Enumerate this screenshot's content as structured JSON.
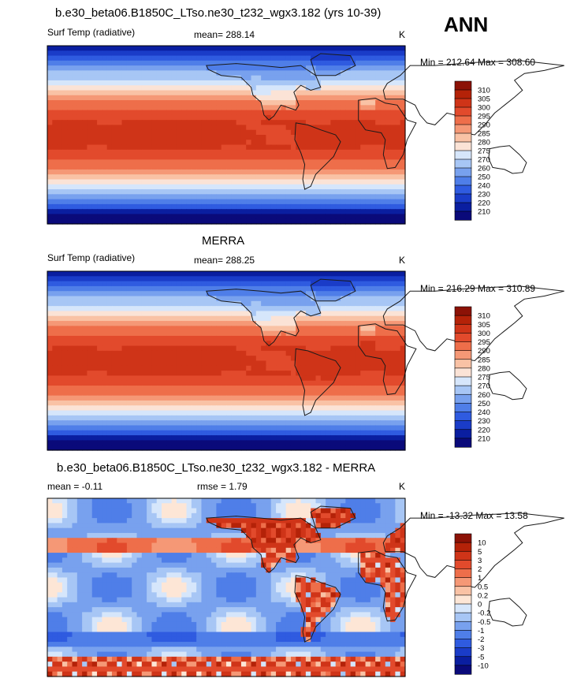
{
  "season_label": "ANN",
  "colors": {
    "abs_scale": [
      "#0a0a7a",
      "#0a1ea0",
      "#1a3cc8",
      "#2f5be0",
      "#4f7ee8",
      "#78a1ee",
      "#a7c6f5",
      "#d6e6fb",
      "#fbe3d6",
      "#f9c2a5",
      "#f59876",
      "#ee6e4a",
      "#e24a2c",
      "#cf3418",
      "#b42208",
      "#8c1206"
    ],
    "diff_scale": [
      "#0a0a7a",
      "#0a1ea0",
      "#1a3cc8",
      "#2f5be0",
      "#4f7ee8",
      "#78a1ee",
      "#a7c6f5",
      "#d6e6fb",
      "#fde6d6",
      "#f9c2a5",
      "#f59876",
      "#ee6e4a",
      "#e24a2c",
      "#cf3418",
      "#b42208",
      "#8c1206"
    ],
    "land": "#1a1a1a"
  },
  "chart_data": [
    {
      "type": "heatmap",
      "title": "b.e30_beta06.B1850C_LTso.ne30_t232_wgx3.182 (yrs 10-39)",
      "variable": "Surf Temp (radiative)",
      "mean_label": "mean= 288.14",
      "units": "K",
      "minmax": "Min = 212.64 Max = 308.60",
      "colorbar_levels": [
        "310",
        "305",
        "300",
        "295",
        "290",
        "285",
        "280",
        "275",
        "270",
        "260",
        "250",
        "240",
        "230",
        "220",
        "210"
      ],
      "field": "model"
    },
    {
      "type": "heatmap",
      "title": "MERRA",
      "variable": "Surf Temp (radiative)",
      "mean_label": "mean= 288.25",
      "units": "K",
      "minmax": "Min = 216.29 Max = 310.89",
      "colorbar_levels": [
        "310",
        "305",
        "300",
        "295",
        "290",
        "285",
        "280",
        "275",
        "270",
        "260",
        "250",
        "240",
        "230",
        "220",
        "210"
      ],
      "field": "obs"
    },
    {
      "type": "heatmap",
      "title": "b.e30_beta06.B1850C_LTso.ne30_t232_wgx3.182 - MERRA",
      "mean_label": "mean =  -0.11",
      "rmse_label": "rmse =   1.79",
      "units": "K",
      "minmax": "Min = -13.32 Max =  13.58",
      "colorbar_levels": [
        "10",
        "5",
        "3",
        "2",
        "1",
        "0.5",
        "0.2",
        "0",
        "-0.2",
        "-0.5",
        "-1",
        "-2",
        "-3",
        "-5",
        "-10"
      ],
      "field": "diff"
    }
  ]
}
